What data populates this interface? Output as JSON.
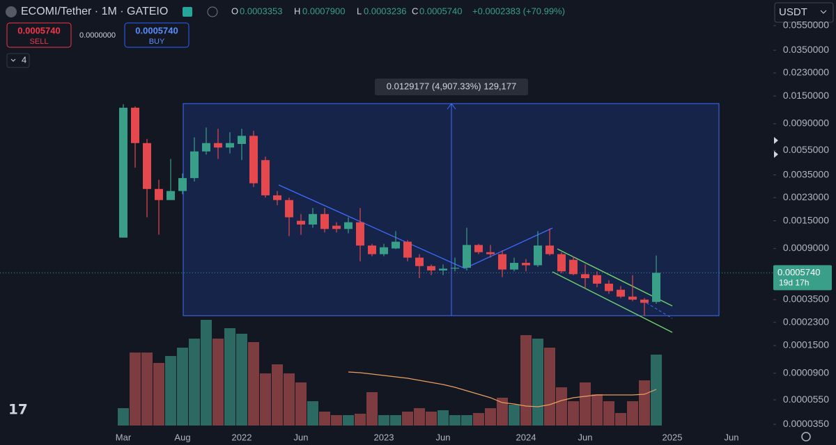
{
  "header": {
    "symbol": "ECOMI/Tether · 1M · GATEIO",
    "o_label": "O",
    "o": "0.0003353",
    "h_label": "H",
    "h": "0.0007900",
    "l_label": "L",
    "l": "0.0003236",
    "c_label": "C",
    "c": "0.0005740",
    "change": "+0.0002383 (+70.99%)",
    "sell_price": "0.0005740",
    "sell": "SELL",
    "spread": "0.0000000",
    "buy_price": "0.0005740",
    "buy": "BUY",
    "indicators": "4",
    "currency": "USDT"
  },
  "chart_data": {
    "type": "candlestick",
    "log_scale": true,
    "up_color": "#3a9f88",
    "down_color": "#e5484d",
    "volume_up_color": "#2d6963",
    "volume_down_color": "#7d3c40",
    "volume_ma_color": "#e8a060",
    "categories": [
      "Mar",
      null,
      null,
      null,
      null,
      "Aug",
      null,
      null,
      null,
      null,
      "2022",
      null,
      null,
      null,
      null,
      "Jun",
      null,
      null,
      null,
      null,
      null,
      null,
      "2023",
      null,
      null,
      null,
      null,
      "Jun",
      null,
      null,
      null,
      null,
      null,
      null,
      "2024",
      null,
      null,
      null,
      null,
      "Jun",
      null,
      null,
      null,
      null,
      null,
      null
    ],
    "future_labels": [
      "2025",
      "Jun"
    ],
    "ohlc": [
      [
        0.0011,
        0.0129,
        0.0011,
        0.0121
      ],
      [
        0.0121,
        0.0124,
        0.004,
        0.0063
      ],
      [
        0.0063,
        0.0068,
        0.0016,
        0.0027
      ],
      [
        0.0027,
        0.0032,
        0.00116,
        0.0022
      ],
      [
        0.0022,
        0.0047,
        0.0022,
        0.0026
      ],
      [
        0.0026,
        0.0036,
        0.00245,
        0.0033
      ],
      [
        0.0033,
        0.007,
        0.0031,
        0.0054
      ],
      [
        0.0054,
        0.0084,
        0.0051,
        0.0063
      ],
      [
        0.0063,
        0.0082,
        0.0047,
        0.0058
      ],
      [
        0.0058,
        0.0077,
        0.0052,
        0.0063
      ],
      [
        0.0062,
        0.0082,
        0.0046,
        0.0072
      ],
      [
        0.0072,
        0.0079,
        0.0028,
        0.003
      ],
      [
        0.0046,
        0.0049,
        0.0023,
        0.0024
      ],
      [
        0.0024,
        0.0026,
        0.002,
        0.0022
      ],
      [
        0.0022,
        0.0023,
        0.00113,
        0.0016
      ],
      [
        0.0015,
        0.0017,
        0.00116,
        0.0014
      ],
      [
        0.0014,
        0.0019,
        0.00132,
        0.0017
      ],
      [
        0.0017,
        0.0019,
        0.00121,
        0.00129
      ],
      [
        0.00137,
        0.00146,
        0.00121,
        0.00129
      ],
      [
        0.00129,
        0.0016,
        0.00119,
        0.00146
      ],
      [
        0.00146,
        0.0019,
        0.00071,
        0.00095
      ],
      [
        0.00095,
        0.00098,
        0.00078,
        0.00081
      ],
      [
        0.00081,
        0.00098,
        0.00078,
        0.00092
      ],
      [
        0.0009,
        0.00124,
        0.00089,
        0.00102
      ],
      [
        0.00102,
        0.00105,
        0.00071,
        0.00076
      ],
      [
        0.00076,
        0.00081,
        0.00052,
        0.00065
      ],
      [
        0.00065,
        0.00067,
        0.00055,
        0.0006
      ],
      [
        0.0006,
        0.00067,
        0.00055,
        0.00062
      ],
      [
        0.00062,
        0.00076,
        0.00059,
        0.00063
      ],
      [
        0.00063,
        0.00132,
        0.0006,
        0.00096
      ],
      [
        0.00096,
        0.00098,
        0.00081,
        0.00084
      ],
      [
        0.00084,
        0.00096,
        0.00076,
        0.00081
      ],
      [
        0.00081,
        0.00087,
        0.00053,
        0.00061
      ],
      [
        0.00061,
        0.00076,
        0.00059,
        0.00069
      ],
      [
        0.00069,
        0.00074,
        0.00059,
        0.00066
      ],
      [
        0.00066,
        0.00124,
        0.00064,
        0.00095
      ],
      [
        0.00095,
        0.0013,
        0.00079,
        0.00081
      ],
      [
        0.00081,
        0.00084,
        0.00057,
        0.00059
      ],
      [
        0.00073,
        0.00078,
        0.00055,
        0.00056
      ],
      [
        0.00056,
        0.00067,
        0.00043,
        0.00052
      ],
      [
        0.00055,
        0.00059,
        0.00044,
        0.00047
      ],
      [
        0.00047,
        0.0005,
        0.00039,
        0.00041
      ],
      [
        0.00042,
        0.00045,
        0.00036,
        0.00037
      ],
      [
        0.00037,
        0.00055,
        0.00034,
        0.00035
      ],
      [
        0.00035,
        0.00036,
        0.00026,
        0.00033
      ],
      [
        0.0003353,
        0.00079,
        0.0003236,
        0.000574
      ]
    ],
    "volume": [
      25,
      105,
      105,
      90,
      100,
      112,
      125,
      152,
      125,
      140,
      132,
      120,
      75,
      88,
      75,
      62,
      35,
      20,
      15,
      15,
      17,
      48,
      15,
      15,
      20,
      25,
      20,
      22,
      15,
      15,
      18,
      25,
      40,
      30,
      130,
      125,
      112,
      55,
      35,
      62,
      45,
      35,
      18,
      35,
      65,
      102
    ],
    "volume_ma": [
      null,
      null,
      null,
      null,
      null,
      null,
      null,
      null,
      null,
      null,
      null,
      null,
      null,
      null,
      null,
      null,
      null,
      null,
      null,
      77,
      76,
      74,
      72,
      70,
      68,
      65,
      62,
      59,
      55,
      50,
      45,
      40,
      33,
      31,
      28,
      27,
      30,
      36,
      40,
      42,
      44,
      44,
      44,
      44,
      45,
      52
    ],
    "volume_lim": [
      0,
      160
    ],
    "ylim": [
      3.09e-05,
      0.0884
    ],
    "yticks": [
      {
        "value": 0.055,
        "label": "0.0550000"
      },
      {
        "value": 0.035,
        "label": "0.0350000"
      },
      {
        "value": 0.023,
        "label": "0.0230000"
      },
      {
        "value": 0.015,
        "label": "0.0150000"
      },
      {
        "value": 0.009,
        "label": "0.0090000"
      },
      {
        "value": 0.0055,
        "label": "0.0055000"
      },
      {
        "value": 0.0035,
        "label": "0.0035000"
      },
      {
        "value": 0.0023,
        "label": "0.0023000"
      },
      {
        "value": 0.0015,
        "label": "0.0015000"
      },
      {
        "value": 0.0009,
        "label": "0.0009000"
      },
      {
        "value": 0.00035,
        "label": "0.0003500"
      },
      {
        "value": 0.00023,
        "label": "0.0002300"
      },
      {
        "value": 0.00015,
        "label": "0.0001500"
      },
      {
        "value": 9e-05,
        "label": "0.0000900"
      },
      {
        "value": 5.5e-05,
        "label": "0.0000550"
      },
      {
        "value": 3.5e-05,
        "label": "0.0000350"
      }
    ],
    "last_price": {
      "value": 0.000574,
      "label": "0.0005740"
    },
    "countdown": "19d 17h",
    "measure_label": "0.0129177 (4,907.33%) 129,177"
  }
}
